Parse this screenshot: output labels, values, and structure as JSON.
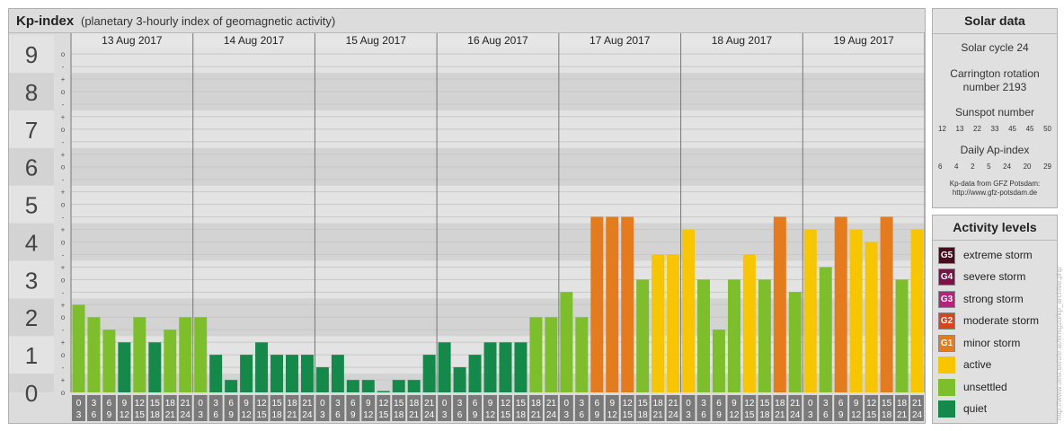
{
  "header": {
    "title": "Kp-index",
    "subtitle": "(planetary 3-hourly index of geomagnetic activity)"
  },
  "chart_data": {
    "type": "bar",
    "title": "Kp-index",
    "subtitle": "(planetary 3-hourly index of geomagnetic activity)",
    "y_ticks": [
      "0",
      "1",
      "2",
      "3",
      "4",
      "5",
      "6",
      "7",
      "8",
      "9"
    ],
    "y_minor_labels": [
      "o",
      "+",
      "-"
    ],
    "ylim": [
      0,
      9
    ],
    "days": [
      "13 Aug 2017",
      "14 Aug 2017",
      "15 Aug 2017",
      "16 Aug 2017",
      "17 Aug 2017",
      "18 Aug 2017",
      "19 Aug 2017"
    ],
    "interval_start_labels": [
      "0",
      "3",
      "6",
      "9",
      "12",
      "15",
      "18",
      "21"
    ],
    "interval_end_labels": [
      "3",
      "6",
      "9",
      "12",
      "15",
      "18",
      "21",
      "24"
    ],
    "values": [
      [
        2.33,
        2.0,
        1.67,
        1.33,
        2.0,
        1.33,
        1.67,
        2.0
      ],
      [
        2.0,
        1.0,
        0.33,
        1.0,
        1.33,
        1.0,
        1.0,
        1.0
      ],
      [
        0.67,
        1.0,
        0.33,
        0.33,
        0.0,
        0.33,
        0.33,
        1.0
      ],
      [
        1.33,
        0.67,
        1.0,
        1.33,
        1.33,
        1.33,
        2.0,
        2.0
      ],
      [
        2.67,
        2.0,
        4.67,
        4.67,
        4.67,
        3.0,
        3.67,
        3.67
      ],
      [
        4.33,
        3.0,
        1.67,
        3.0,
        3.67,
        3.0,
        4.67,
        2.67
      ],
      [
        4.33,
        3.33,
        4.67,
        4.33,
        4.0,
        4.67,
        3.0,
        4.33
      ]
    ],
    "thresholds": {
      "unsettled": 1.67,
      "active": 3.5,
      "minor_storm": 4.5
    },
    "band_colors": [
      "#d3d3d3",
      "#e3e3e3"
    ],
    "grid": true
  },
  "solar": {
    "header": "Solar data",
    "cycle": "Solar cycle 24",
    "carrington_line1": "Carrington rotation",
    "carrington_line2": "number 2193",
    "sunspot_label": "Sunspot number",
    "sunspot_values": [
      "12",
      "13",
      "22",
      "33",
      "45",
      "45",
      "50"
    ],
    "ap_label": "Daily Ap-index",
    "ap_values": [
      "6",
      "4",
      "2",
      "5",
      "24",
      "20",
      "29"
    ],
    "credit_line1": "Kp-data from GFZ Potsdam:",
    "credit_line2": "http://www.gfz-potsdam.de"
  },
  "activity": {
    "header": "Activity levels",
    "levels": [
      {
        "code": "G5",
        "label": "extreme storm",
        "color": "#4a0a1e"
      },
      {
        "code": "G4",
        "label": "severe storm",
        "color": "#7a1346"
      },
      {
        "code": "G3",
        "label": "strong storm",
        "color": "#b5237a"
      },
      {
        "code": "G2",
        "label": "moderate storm",
        "color": "#d94420"
      },
      {
        "code": "G1",
        "label": "minor storm",
        "color": "#e47b1c"
      },
      {
        "code": "",
        "label": "active",
        "color": "#f7c600"
      },
      {
        "code": "",
        "label": "unsettled",
        "color": "#7dbf2a"
      },
      {
        "code": "",
        "label": "quiet",
        "color": "#15894a"
      }
    ]
  },
  "watermark": "http://www.tiesi.se/ufe.at/ensgzo/kp_archive.php"
}
